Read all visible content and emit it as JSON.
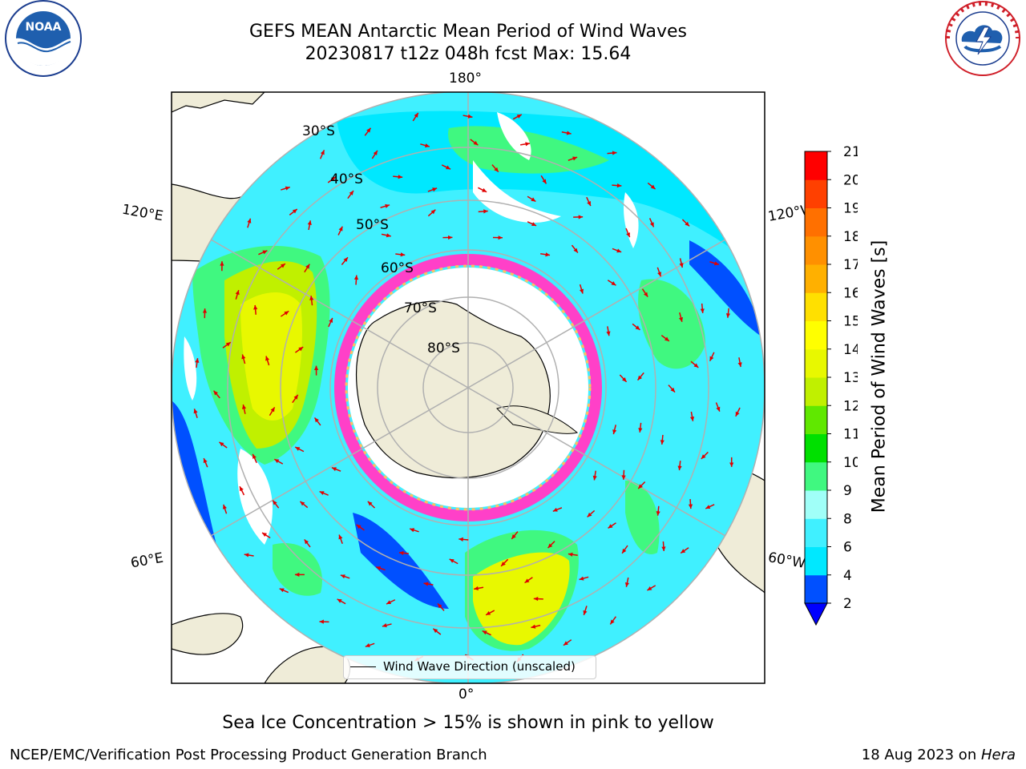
{
  "header": {
    "title_line1": "GEFS MEAN Antarctic Mean Period of Wind Waves",
    "title_line2": "20230817 t12z 048h fcst   Max: 15.64"
  },
  "logos": {
    "left": {
      "name": "NOAA",
      "text": "NOAA",
      "ring_text": "NATIONAL OCEANIC AND ATMOSPHERIC ADMINISTRATION · U.S. DEPARTMENT OF COMMERCE"
    },
    "right": {
      "name": "National Weather Service",
      "ring_text": "NATIONAL WEATHER SERVICE"
    }
  },
  "map": {
    "projection": "South Polar Stereographic",
    "lon_labels": {
      "top": "180°",
      "bottom": "0°",
      "left_upper": "120°E",
      "left_lower": "60°E",
      "right_upper": "120°W",
      "right_lower": "60°W"
    },
    "lat_labels": [
      "30°S",
      "40°S",
      "50°S",
      "60°S",
      "70°S",
      "80°S"
    ],
    "legend": {
      "label": "Wind Wave Direction (unscaled)"
    },
    "colors": {
      "land": "#efecd8",
      "ice": "#ffffff",
      "sea_ice_edge": "#ff40c8",
      "grid": "#b0b0b0",
      "arrow": "#e00000"
    }
  },
  "colorbar": {
    "label": "Mean Period of Wind Waves [s]",
    "ticks": [
      "2",
      "4",
      "6",
      "8",
      "9",
      "10",
      "11",
      "12",
      "13",
      "14",
      "15",
      "16",
      "17",
      "18",
      "19",
      "20",
      "21"
    ],
    "colors": [
      "#0050ff",
      "#00e8ff",
      "#40f0ff",
      "#a0fff8",
      "#40f880",
      "#00e000",
      "#60e800",
      "#c0f000",
      "#e8f800",
      "#ffff00",
      "#ffe000",
      "#ffb000",
      "#ff9000",
      "#ff7000",
      "#ff4000",
      "#ff0000"
    ],
    "under_color": "#0000ff",
    "extend": "min"
  },
  "note": "Sea Ice Concentration > 15% is shown in pink to yellow",
  "footer": {
    "left": "NCEP/EMC/Verification Post Processing Product Generation Branch",
    "right_date": "18 Aug 2023 on ",
    "right_host": "Hera"
  }
}
